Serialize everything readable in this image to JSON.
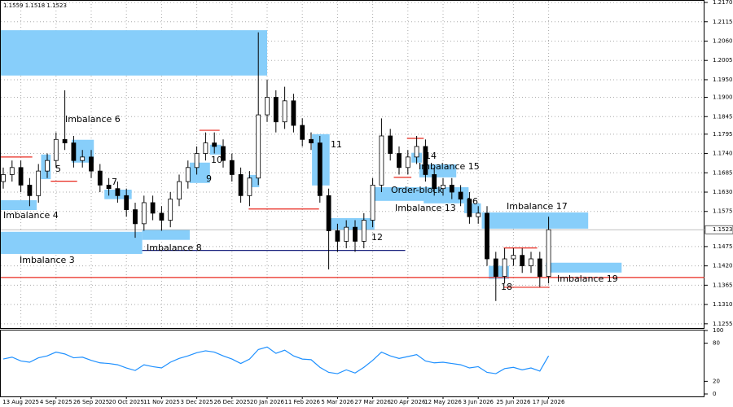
{
  "chart_data": {
    "type": "candlestick",
    "header": "1.1559 1.1518 1.1523",
    "categories": [
      null,
      null,
      "13 Aug 2025",
      null,
      null,
      null,
      "4 Sep 2025",
      null,
      null,
      null,
      "26 Sep 2025",
      null,
      null,
      null,
      "20 Oct 2025",
      null,
      null,
      null,
      "11 Nov 2025",
      null,
      null,
      null,
      "3 Dec 2025",
      null,
      null,
      null,
      "26 Dec 2025",
      null,
      null,
      null,
      "20 Jan 2026",
      null,
      null,
      null,
      "11 Feb 2026",
      null,
      null,
      null,
      "5 Mar 2026",
      null,
      null,
      null,
      "27 Mar 2026",
      null,
      null,
      null,
      "20 Apr 2026",
      null,
      null,
      null,
      "12 May 2026",
      null,
      null,
      null,
      "3 Jun 2026",
      null,
      null,
      null,
      "25 Jun 2026",
      null,
      null,
      null,
      "17 Jul 2026"
    ],
    "open": [
      1.166,
      1.168,
      1.17,
      1.165,
      1.162,
      1.169,
      1.172,
      1.178,
      1.177,
      1.172,
      1.173,
      1.169,
      1.165,
      1.164,
      1.162,
      1.158,
      1.154,
      1.16,
      1.157,
      1.155,
      1.161,
      1.166,
      1.17,
      1.174,
      1.177,
      1.176,
      1.172,
      1.168,
      1.162,
      1.167,
      1.185,
      1.19,
      1.183,
      1.189,
      1.182,
      1.178,
      1.177,
      1.162,
      1.152,
      1.149,
      1.153,
      1.149,
      1.155,
      1.165,
      1.179,
      1.174,
      1.17,
      1.173,
      1.176,
      1.168,
      1.164,
      1.165,
      1.163,
      1.161,
      1.156,
      1.157,
      1.144,
      1.139,
      1.144,
      1.145,
      1.142,
      1.144,
      1.139
    ],
    "high": [
      1.17,
      1.172,
      1.172,
      1.167,
      1.171,
      1.174,
      1.18,
      1.192,
      1.179,
      1.175,
      1.175,
      1.171,
      1.167,
      1.166,
      1.164,
      1.16,
      1.162,
      1.162,
      1.159,
      1.163,
      1.168,
      1.172,
      1.176,
      1.18,
      1.18,
      1.178,
      1.174,
      1.17,
      1.169,
      1.2085,
      1.195,
      1.192,
      1.193,
      1.191,
      1.184,
      1.18,
      1.179,
      1.164,
      1.154,
      1.155,
      1.155,
      1.157,
      1.167,
      1.184,
      1.181,
      1.176,
      1.175,
      1.179,
      1.178,
      1.17,
      1.167,
      1.167,
      1.165,
      1.163,
      1.159,
      1.159,
      1.146,
      1.147,
      1.147,
      1.147,
      1.146,
      1.146,
      1.156
    ],
    "low": [
      1.164,
      1.166,
      1.163,
      1.159,
      1.16,
      1.167,
      1.17,
      1.175,
      1.17,
      1.17,
      1.167,
      1.163,
      1.162,
      1.16,
      1.156,
      1.15,
      1.152,
      1.155,
      1.152,
      1.153,
      1.159,
      1.164,
      1.168,
      1.172,
      1.174,
      1.17,
      1.166,
      1.16,
      1.159,
      1.165,
      1.183,
      1.18,
      1.181,
      1.18,
      1.176,
      1.175,
      1.16,
      1.141,
      1.146,
      1.147,
      1.146,
      1.147,
      1.153,
      1.163,
      1.172,
      1.168,
      1.168,
      1.171,
      1.166,
      1.162,
      1.162,
      1.161,
      1.159,
      1.154,
      1.154,
      1.142,
      1.132,
      1.137,
      1.142,
      1.14,
      1.14,
      1.136,
      1.137
    ],
    "close": [
      1.168,
      1.17,
      1.165,
      1.162,
      1.169,
      1.172,
      1.178,
      1.177,
      1.172,
      1.173,
      1.169,
      1.165,
      1.164,
      1.162,
      1.158,
      1.154,
      1.16,
      1.157,
      1.155,
      1.161,
      1.166,
      1.17,
      1.174,
      1.177,
      1.176,
      1.172,
      1.168,
      1.162,
      1.167,
      1.185,
      1.19,
      1.183,
      1.189,
      1.182,
      1.178,
      1.177,
      1.162,
      1.152,
      1.149,
      1.153,
      1.149,
      1.155,
      1.165,
      1.179,
      1.174,
      1.17,
      1.173,
      1.176,
      1.168,
      1.164,
      1.165,
      1.163,
      1.161,
      1.156,
      1.157,
      1.144,
      1.139,
      1.144,
      1.145,
      1.142,
      1.144,
      1.139,
      1.1523
    ],
    "ylim": [
      1.1243,
      1.2177
    ],
    "yticks": [
      {
        "value": 1.217,
        "label": "1.2170"
      },
      1.2115,
      {
        "value": 1.206,
        "label": "1.2060"
      },
      1.2005,
      {
        "value": 1.195,
        "label": "1.1950"
      },
      {
        "value": 1.19,
        "label": "1.1900"
      },
      1.1845,
      1.1795,
      {
        "value": 1.174,
        "label": "1.1740"
      },
      1.1685,
      {
        "value": 1.163,
        "label": "1.1630"
      },
      1.1575,
      1.1475,
      {
        "value": 1.142,
        "label": "1.1420"
      },
      1.1365,
      {
        "value": 1.131,
        "label": "1.1310"
      },
      1.1255
    ],
    "grid": true,
    "zone_color": "#87cefa",
    "zones": [
      {
        "top": 1.2091,
        "bottom": 1.1962,
        "start": -0.5,
        "end": 30
      },
      {
        "label": "Imbalance 3",
        "top": 1.1517,
        "bottom": 1.1454,
        "start": -0.5,
        "end": 15.8
      },
      {
        "label": "Imbalance 4",
        "top": 1.1607,
        "bottom": 1.1579,
        "start": -0.5,
        "end": 3.8
      },
      {
        "label": "5",
        "top": 1.1737,
        "bottom": 1.1667,
        "start": 4.3,
        "end": 5.4
      },
      {
        "label": "Imbalance 6",
        "top": 1.1779,
        "bottom": 1.1714,
        "start": 7.8,
        "end": 10.3
      },
      {
        "label": "7",
        "top": 1.1637,
        "bottom": 1.161,
        "start": 11.5,
        "end": 14.6
      },
      {
        "label": "Imbalance 8",
        "top": 1.1522,
        "bottom": 1.1494,
        "start": 15.8,
        "end": 21.2
      },
      {
        "label": "9",
        "top": 1.1714,
        "bottom": 1.1656,
        "start": 21.2,
        "end": 23.5
      },
      {
        "label": "10",
        "top": 1.1765,
        "bottom": 1.1737,
        "start": 23.5,
        "end": 24.8
      },
      {
        "top": 1.1679,
        "bottom": 1.1644,
        "start": 27.9,
        "end": 29.1
      },
      {
        "label": "11",
        "top": 1.1795,
        "bottom": 1.1649,
        "start": 35.1,
        "end": 37.1
      },
      {
        "label": "12",
        "top": 1.1556,
        "bottom": 1.1522,
        "start": 37.1,
        "end": 42.2
      },
      {
        "label": "Order-block",
        "top": 1.1644,
        "bottom": 1.1605,
        "start": 41.8,
        "end": 52.9
      },
      {
        "label": "Imbalance 13",
        "top": 1.164,
        "bottom": 1.1598,
        "start": 47.8,
        "end": 52.9
      },
      {
        "label": "14",
        "top": 1.1742,
        "bottom": 1.1714,
        "start": 46.4,
        "end": 47.6
      },
      {
        "label": "Imbalance 15",
        "top": 1.1709,
        "bottom": 1.1672,
        "start": 47.3,
        "end": 51.5
      },
      {
        "label": "16",
        "top": 1.1598,
        "bottom": 1.157,
        "start": 52.4,
        "end": 54.3
      },
      {
        "label": "Imbalance 17",
        "top": 1.1572,
        "bottom": 1.1526,
        "start": 54.4,
        "end": 66.5
      },
      {
        "label": "18",
        "top": 1.142,
        "bottom": 1.1383,
        "start": 55.2,
        "end": 57.5
      },
      {
        "label": "Imbalance 19",
        "top": 1.1429,
        "bottom": 1.1401,
        "start": 61.7,
        "end": 70.3
      }
    ],
    "levels": [
      {
        "price": 1.1387,
        "start": -0.5,
        "end": 79.7,
        "color": "#e8281e"
      },
      {
        "price": 1.1464,
        "start": 15.8,
        "end": 45.7,
        "color": "#1a237e"
      },
      {
        "price": 1.1582,
        "start": 27.9,
        "end": 35.9,
        "color": "#e8281e"
      },
      {
        "price": 1.173,
        "start": -0.5,
        "end": 3.3,
        "color": "#e8281e"
      },
      {
        "price": 1.1661,
        "start": 5.4,
        "end": 8.4,
        "color": "#e8281e"
      },
      {
        "price": 1.1806,
        "start": 22.3,
        "end": 24.6,
        "color": "#e8281e"
      },
      {
        "price": 1.1783,
        "start": 45.9,
        "end": 47.8,
        "color": "#e8281e"
      },
      {
        "price": 1.1672,
        "start": 44.4,
        "end": 46.4,
        "color": "#e8281e"
      },
      {
        "price": 1.1471,
        "start": 56.9,
        "end": 60.7,
        "color": "#e8281e"
      },
      {
        "price": 1.1359,
        "start": 56.9,
        "end": 62.1,
        "color": "#e8281e"
      }
    ],
    "oscillator": {
      "color": "#1e90ff",
      "ylim": [
        0,
        100
      ],
      "yticks": [
        100,
        80,
        20,
        0
      ],
      "values": [
        55,
        58,
        52,
        50,
        57,
        60,
        66,
        63,
        57,
        58,
        53,
        49,
        48,
        46,
        41,
        37,
        46,
        43,
        41,
        50,
        56,
        60,
        65,
        68,
        66,
        60,
        55,
        48,
        55,
        70,
        74,
        64,
        69,
        60,
        55,
        54,
        42,
        34,
        32,
        38,
        33,
        42,
        53,
        66,
        60,
        56,
        59,
        62,
        52,
        49,
        50,
        48,
        46,
        41,
        43,
        34,
        32,
        40,
        42,
        38,
        41,
        36,
        60
      ]
    }
  }
}
